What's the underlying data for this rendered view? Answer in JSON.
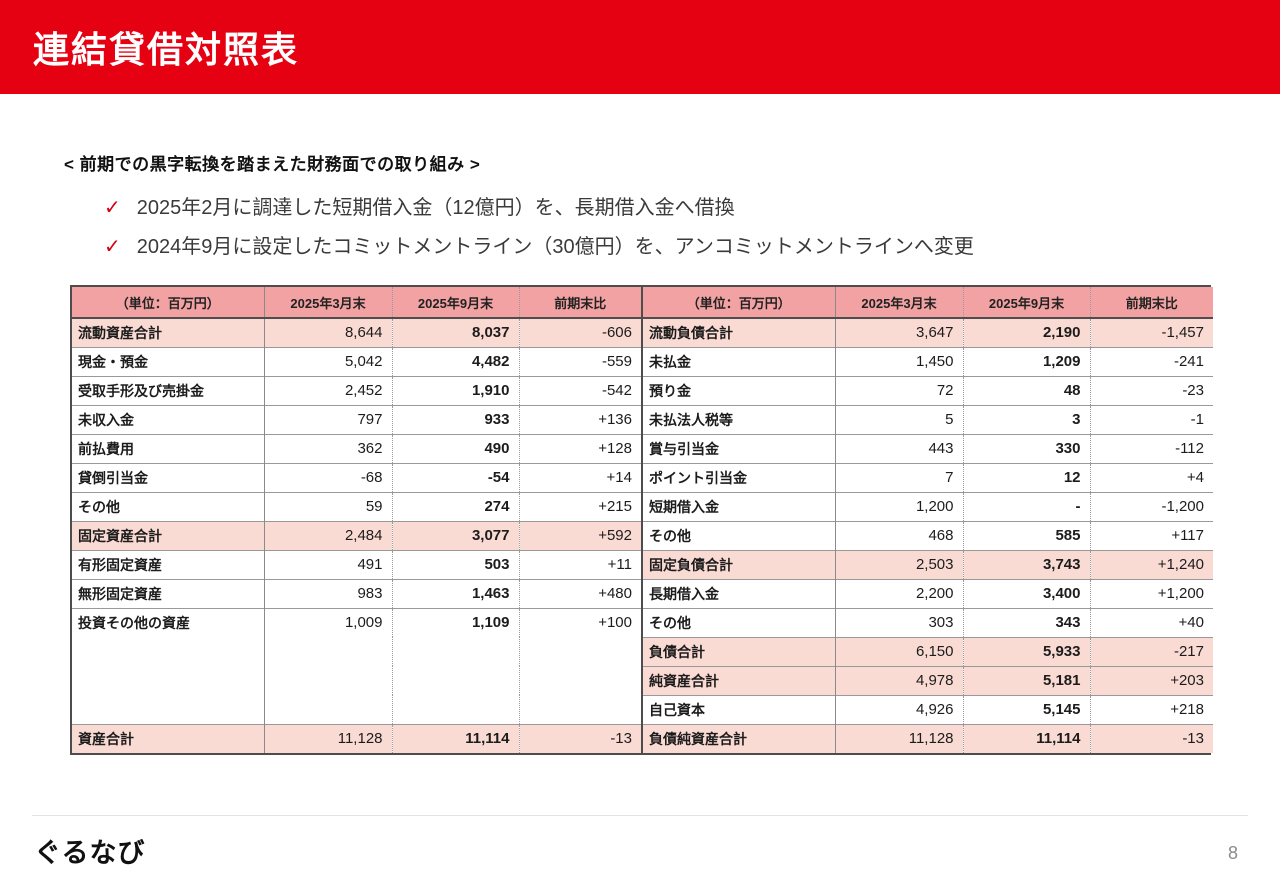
{
  "slide": {
    "title": "連結貸借対照表",
    "page_number": "8",
    "logo_text": "ぐるなび"
  },
  "intro": {
    "heading": "< 前期での黒字転換を踏まえた財務面での取り組み >",
    "check_mark": "✓",
    "bullets": [
      "2025年2月に調達した短期借入金（12億円）を、長期借入金へ借換",
      "2024年9月に設定したコミットメントライン（30億円）を、アンコミットメントラインへ変更"
    ]
  },
  "colors": {
    "header_red": "#e50012",
    "check_red": "#d7000f",
    "table_header_bg": "#f2a2a2",
    "highlight_bg": "#fadbd4"
  },
  "assets_table": {
    "headers": [
      "（単位：百万円）",
      "2025年3月末",
      "2025年9月末",
      "前期末比"
    ],
    "rows": [
      {
        "label": "流動資産合計",
        "mar2025": "8,644",
        "sep2025": "8,037",
        "diff": "-606",
        "highlight": true
      },
      {
        "label": "現金・預金",
        "mar2025": "5,042",
        "sep2025": "4,482",
        "diff": "-559"
      },
      {
        "label": "受取手形及び売掛金",
        "mar2025": "2,452",
        "sep2025": "1,910",
        "diff": "-542"
      },
      {
        "label": "未収入金",
        "mar2025": "797",
        "sep2025": "933",
        "diff": "+136"
      },
      {
        "label": "前払費用",
        "mar2025": "362",
        "sep2025": "490",
        "diff": "+128"
      },
      {
        "label": "貸倒引当金",
        "mar2025": "-68",
        "sep2025": "-54",
        "diff": "+14"
      },
      {
        "label": "その他",
        "mar2025": "59",
        "sep2025": "274",
        "diff": "+215"
      },
      {
        "label": "固定資産合計",
        "mar2025": "2,484",
        "sep2025": "3,077",
        "diff": "+592",
        "highlight": true
      },
      {
        "label": "有形固定資産",
        "mar2025": "491",
        "sep2025": "503",
        "diff": "+11"
      },
      {
        "label": "無形固定資産",
        "mar2025": "983",
        "sep2025": "1,463",
        "diff": "+480"
      },
      {
        "label": "投資その他の資産",
        "mar2025": "1,009",
        "sep2025": "1,109",
        "diff": "+100"
      },
      {
        "label": "",
        "mar2025": "",
        "sep2025": "",
        "diff": "",
        "empty": true
      },
      {
        "label": "",
        "mar2025": "",
        "sep2025": "",
        "diff": "",
        "empty": true
      },
      {
        "label": "",
        "mar2025": "",
        "sep2025": "",
        "diff": "",
        "empty": true
      },
      {
        "label": "資産合計",
        "mar2025": "11,128",
        "sep2025": "11,114",
        "diff": "-13",
        "highlight": true
      }
    ]
  },
  "liabilities_table": {
    "headers": [
      "（単位：百万円）",
      "2025年3月末",
      "2025年9月末",
      "前期末比"
    ],
    "rows": [
      {
        "label": "流動負債合計",
        "mar2025": "3,647",
        "sep2025": "2,190",
        "diff": "-1,457",
        "highlight": true
      },
      {
        "label": "未払金",
        "mar2025": "1,450",
        "sep2025": "1,209",
        "diff": "-241"
      },
      {
        "label": "預り金",
        "mar2025": "72",
        "sep2025": "48",
        "diff": "-23"
      },
      {
        "label": "未払法人税等",
        "mar2025": "5",
        "sep2025": "3",
        "diff": "-1"
      },
      {
        "label": "賞与引当金",
        "mar2025": "443",
        "sep2025": "330",
        "diff": "-112"
      },
      {
        "label": "ポイント引当金",
        "mar2025": "7",
        "sep2025": "12",
        "diff": "+4"
      },
      {
        "label": "短期借入金",
        "mar2025": "1,200",
        "sep2025": "-",
        "diff": "-1,200"
      },
      {
        "label": "その他",
        "mar2025": "468",
        "sep2025": "585",
        "diff": "+117"
      },
      {
        "label": "固定負債合計",
        "mar2025": "2,503",
        "sep2025": "3,743",
        "diff": "+1,240",
        "highlight": true
      },
      {
        "label": "長期借入金",
        "mar2025": "2,200",
        "sep2025": "3,400",
        "diff": "+1,200"
      },
      {
        "label": "その他",
        "mar2025": "303",
        "sep2025": "343",
        "diff": "+40"
      },
      {
        "label": "負債合計",
        "mar2025": "6,150",
        "sep2025": "5,933",
        "diff": "-217",
        "highlight": true
      },
      {
        "label": "純資産合計",
        "mar2025": "4,978",
        "sep2025": "5,181",
        "diff": "+203",
        "highlight": true
      },
      {
        "label": "自己資本",
        "mar2025": "4,926",
        "sep2025": "5,145",
        "diff": "+218"
      },
      {
        "label": "負債純資産合計",
        "mar2025": "11,128",
        "sep2025": "11,114",
        "diff": "-13",
        "highlight": true
      }
    ]
  }
}
